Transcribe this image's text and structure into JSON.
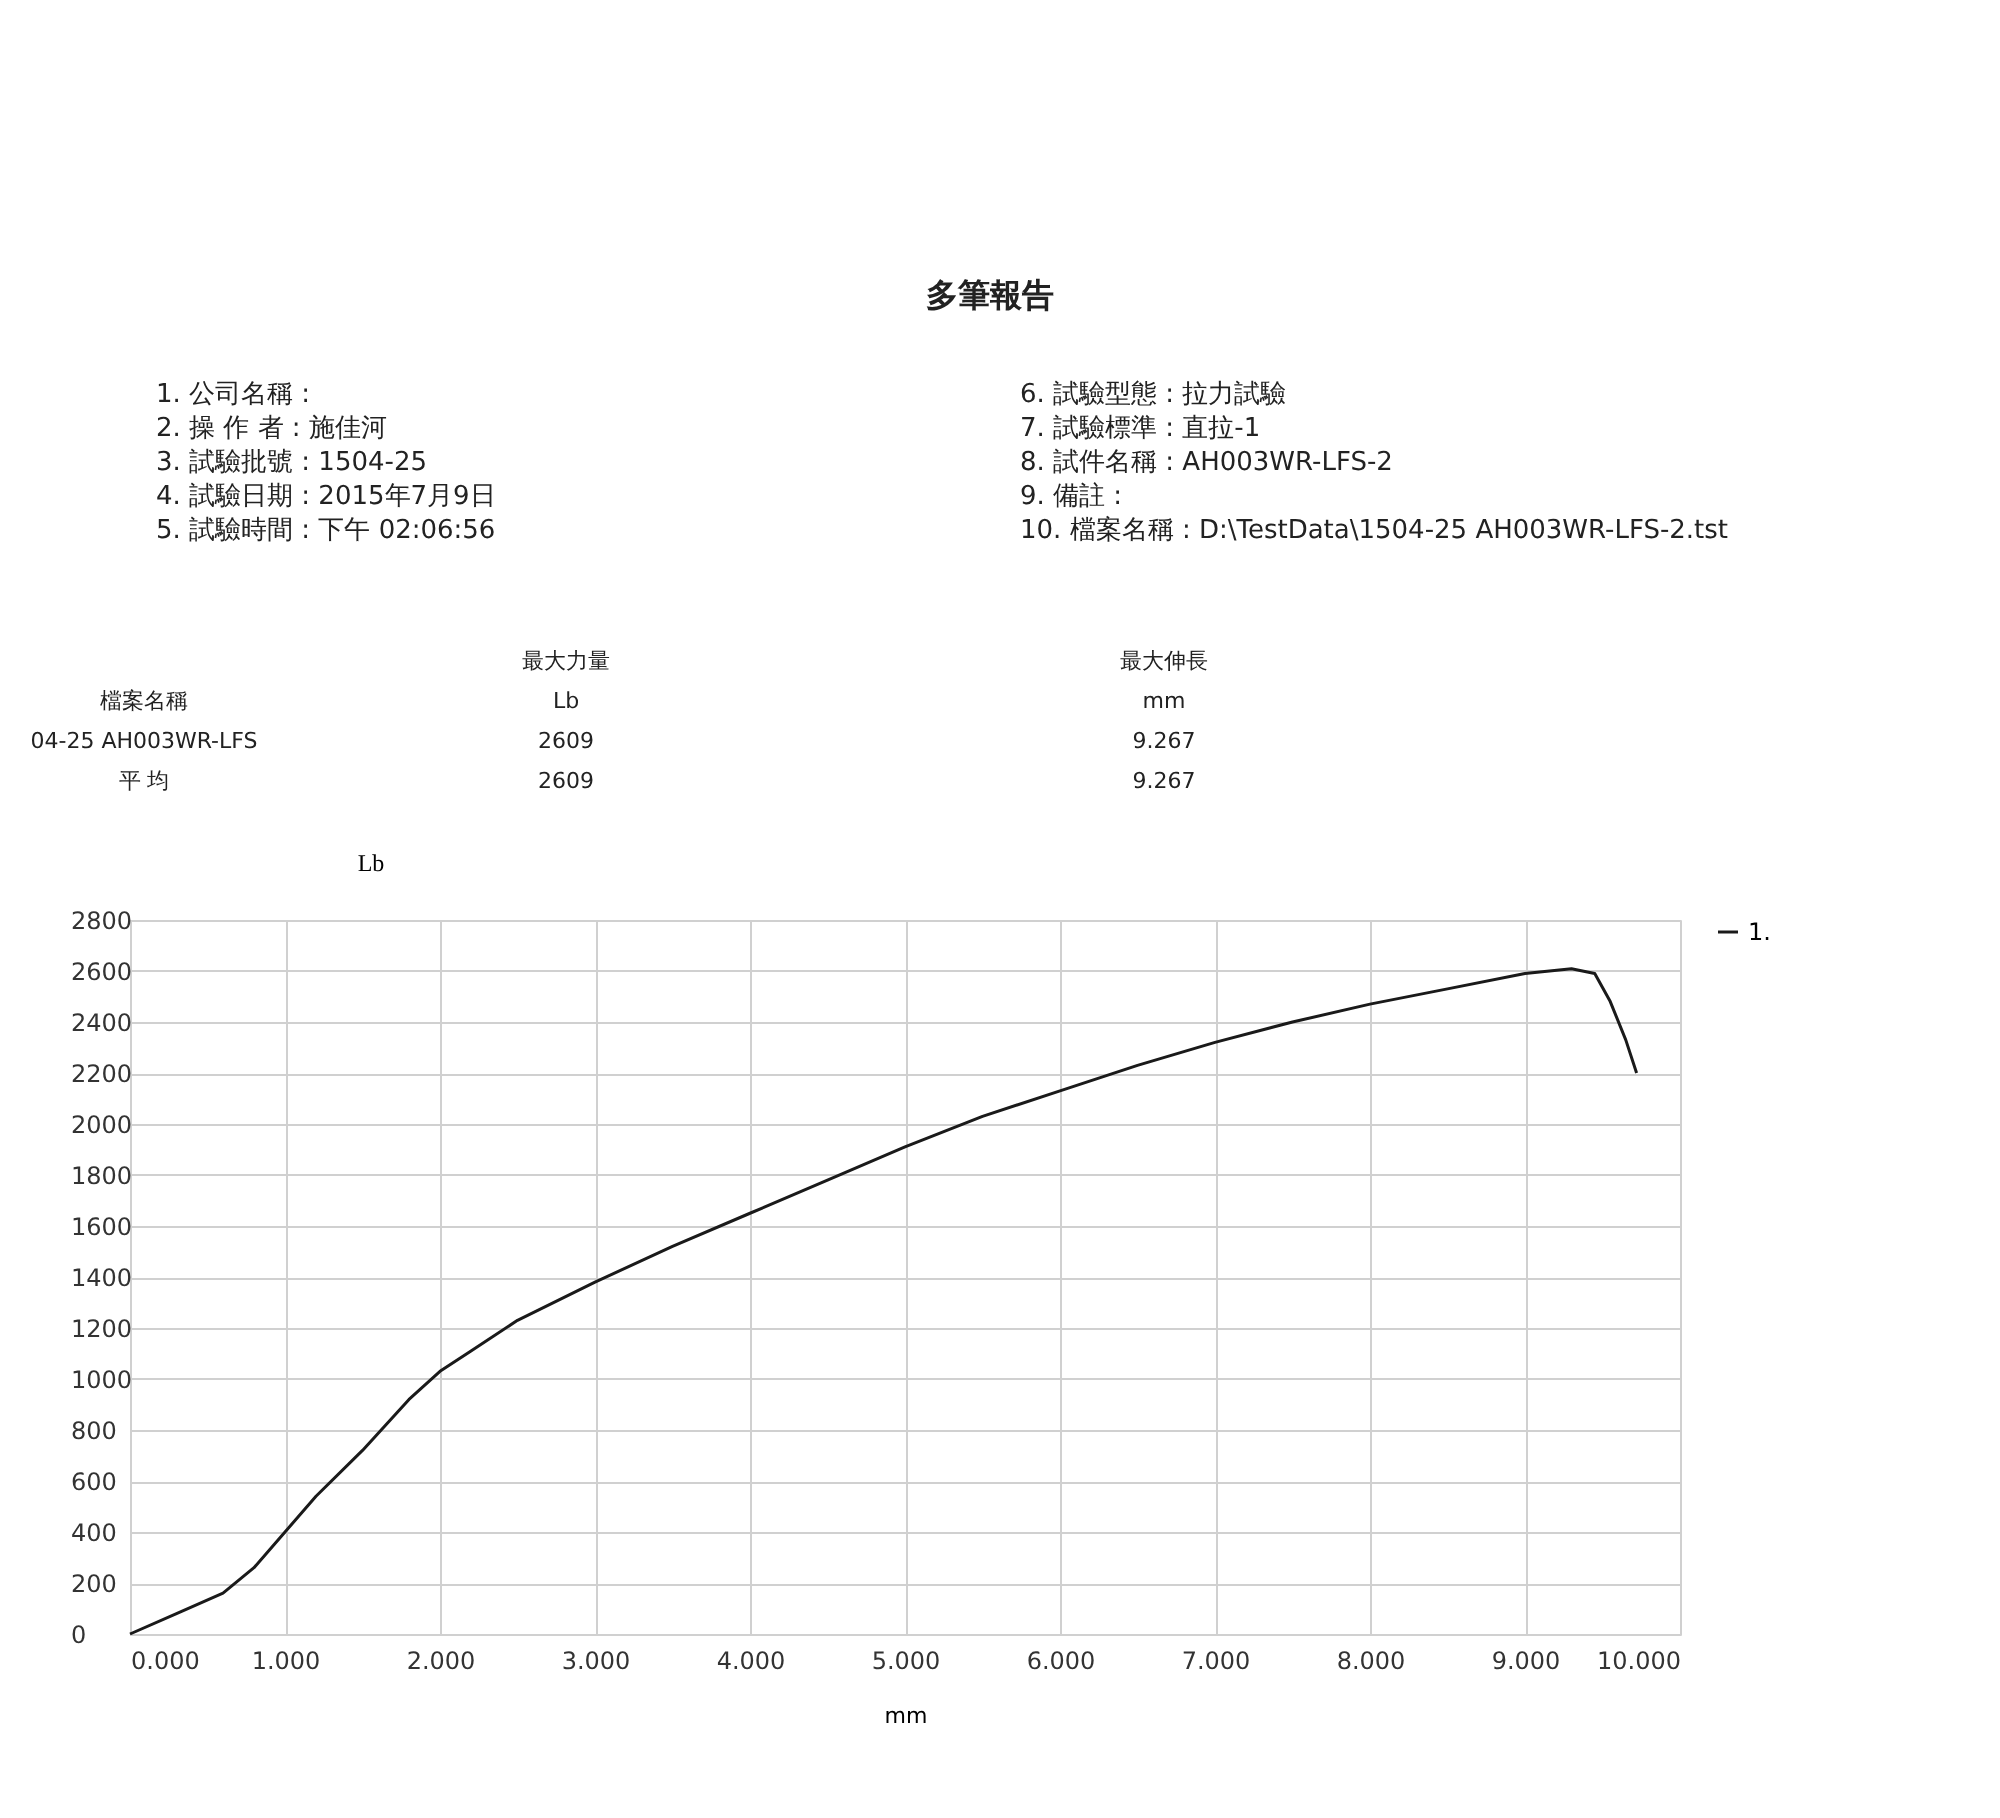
{
  "chart_data": {
    "type": "line",
    "title": "多筆報告",
    "xlabel": "mm",
    "ylabel": "Lb",
    "annotations": [
      "1. 公司名稱 :",
      "2. 操 作 者 : 施佳河",
      "3. 試驗批號 : 1504-25",
      "4. 試驗日期 : 2015年7月9日",
      "5. 試驗時間 : 下午 02:06:56",
      "6. 試驗型態 : 拉力試驗",
      "7. 試驗標準 : 直拉-1",
      "8. 試件名稱 : AH003WR-LFS-2",
      "9. 備註 :",
      "10. 檔案名稱 : D:\\TestData\\1504-25 AH003WR-LFS-2.tst",
      "最大力量",
      "最大伸長",
      "檔案名稱",
      "Lb",
      "mm",
      "04-25 AH003WR-LFS",
      "2609",
      "9.267",
      "平 均",
      "2609",
      "9.267"
    ],
    "series": [
      {
        "name": "1.",
        "color": "#1a1a1a",
        "x": [
          0,
          0.3,
          0.6,
          0.8,
          1.0,
          1.2,
          1.5,
          1.8,
          2.0,
          2.2,
          2.5,
          3.0,
          3.5,
          4.0,
          4.5,
          5.0,
          5.5,
          6.0,
          6.5,
          7.0,
          7.5,
          8.0,
          8.5,
          9.0,
          9.3,
          9.45,
          9.55,
          9.65,
          9.72
        ],
        "values": [
          0,
          80,
          160,
          260,
          400,
          540,
          720,
          920,
          1030,
          1110,
          1230,
          1380,
          1520,
          1650,
          1780,
          1910,
          2030,
          2130,
          2230,
          2320,
          2400,
          2470,
          2530,
          2590,
          2609,
          2590,
          2480,
          2330,
          2200
        ]
      }
    ],
    "xlim": [
      0,
      10
    ],
    "ylim": [
      0,
      2800
    ],
    "xticks": [
      {
        "value": 0,
        "label": "0.000"
      },
      {
        "value": 1,
        "label": "1.000"
      },
      {
        "value": 2,
        "label": "2.000"
      },
      {
        "value": 3,
        "label": "3.000"
      },
      {
        "value": 4,
        "label": "4.000"
      },
      {
        "value": 5,
        "label": "5.000"
      },
      {
        "value": 6,
        "label": "6.000"
      },
      {
        "value": 7,
        "label": "7.000"
      },
      {
        "value": 8,
        "label": "8.000"
      },
      {
        "value": 9,
        "label": "9.000"
      },
      {
        "value": 10,
        "label": "10.000"
      }
    ],
    "yticks": [
      0,
      200,
      400,
      600,
      800,
      1000,
      1200,
      1400,
      1600,
      1800,
      2000,
      2200,
      2400,
      2600,
      2800
    ],
    "grid": true,
    "legend": "top right",
    "marker": "none",
    "line_style": "solid"
  }
}
